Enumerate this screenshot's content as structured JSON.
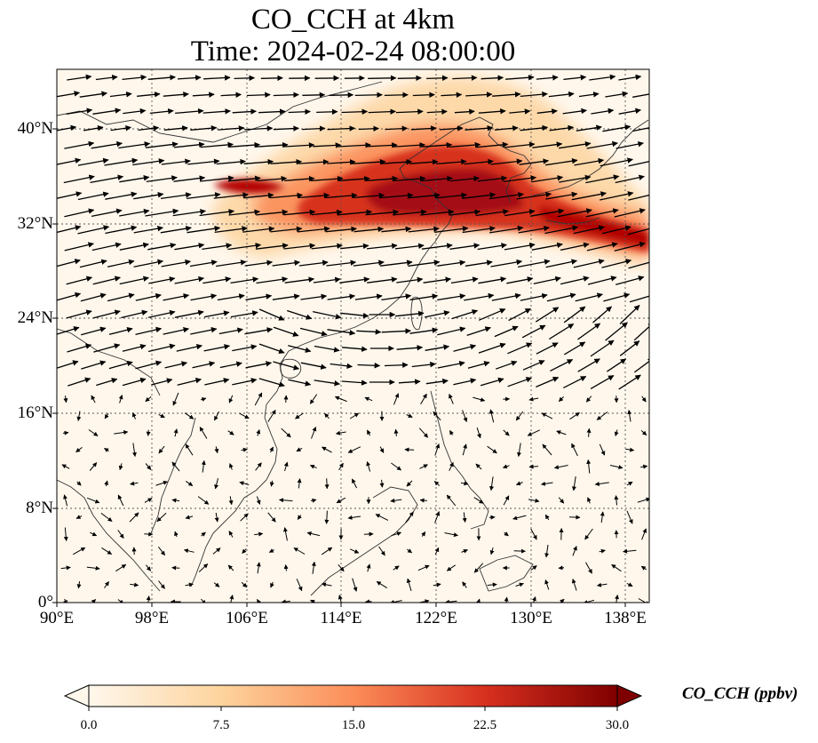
{
  "title": {
    "line1": "CO_CCH at 4km",
    "line2": "Time: 2024-02-24 08:00:00"
  },
  "axes": {
    "lat_ticks": [
      "40°N",
      "32°N",
      "24°N",
      "16°N",
      "8°N",
      "0°"
    ],
    "lon_ticks": [
      "90°E",
      "98°E",
      "106°E",
      "114°E",
      "122°E",
      "130°E",
      "138°E"
    ]
  },
  "colorbar": {
    "label": "CO_CCH (ppbv)",
    "ticks": [
      "0.0",
      "7.5",
      "15.0",
      "22.5",
      "30.0"
    ],
    "colormap": "OrRd",
    "colors": [
      "#fff7ec",
      "#fdd49e",
      "#fc8d59",
      "#d7301f",
      "#7f0000"
    ],
    "extend": "both"
  },
  "chart_data": {
    "type": "heatmap",
    "title": "CO_CCH at 4km\nTime: 2024-02-24 08:00:00",
    "variable": "CO_CCH",
    "units": "ppbv",
    "level": "4km",
    "time": "2024-02-24 08:00:00",
    "lon_range": [
      90,
      140
    ],
    "lat_range": [
      0,
      45
    ],
    "vmin": 0.0,
    "vmax": 30.0,
    "grid": true,
    "overlay": "wind vectors (quiver)",
    "plume_summary": "high CO (>20 ppbv) band from ~103°E,35°N eastward across 110–128°E, 32–38°N, extending to 140°E near 30–33°N; background near 0–2 ppbv",
    "wind_summary": "strong westerlies north of ~20°N; weak variable flow south of ~16°N; anticyclonic curvature near 115–130°E, 16–22°N"
  }
}
